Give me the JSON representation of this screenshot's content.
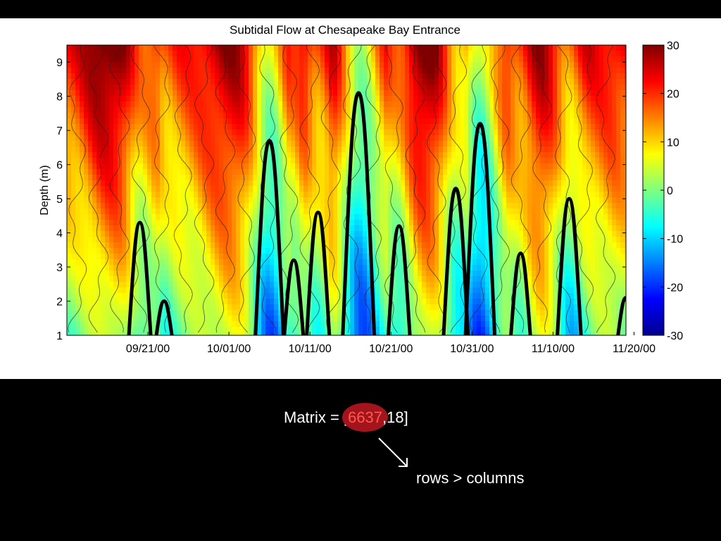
{
  "chart_data": {
    "type": "heatmap",
    "title": "Subtidal Flow at Chesapeake Bay Entrance",
    "xlabel": "",
    "ylabel": "Depth (m)",
    "x_ticks": [
      "09/21/00",
      "10/01/00",
      "10/11/00",
      "10/21/00",
      "10/31/00",
      "11/10/00",
      "11/20/00"
    ],
    "xlim": [
      "09/11/00",
      "11/19/00"
    ],
    "ylim": [
      1,
      9.5
    ],
    "y_ticks": [
      1,
      2,
      3,
      4,
      5,
      6,
      7,
      8,
      9
    ],
    "colorbar": {
      "min": -30,
      "max": 30,
      "ticks": [
        30,
        20,
        10,
        0,
        -10,
        -20,
        -30
      ],
      "colormap": "jet"
    },
    "grid": false,
    "zero_contour_peaks": [
      {
        "date": "09/20/00",
        "depth": 4.3
      },
      {
        "date": "09/23/00",
        "depth": 2.0
      },
      {
        "date": "10/06/00",
        "depth": 6.7
      },
      {
        "date": "10/09/00",
        "depth": 3.2
      },
      {
        "date": "10/12/00",
        "depth": 4.6
      },
      {
        "date": "10/17/00",
        "depth": 8.1
      },
      {
        "date": "10/22/00",
        "depth": 4.2
      },
      {
        "date": "10/29/00",
        "depth": 5.3
      },
      {
        "date": "11/01/00",
        "depth": 7.2
      },
      {
        "date": "11/06/00",
        "depth": 3.4
      },
      {
        "date": "11/12/00",
        "depth": 5.0
      },
      {
        "date": "11/19/00",
        "depth": 2.1
      }
    ]
  },
  "caption": {
    "matrix_prefix": "Matrix = [",
    "matrix_rows": "6637",
    "matrix_suffix": ",18]",
    "annotation": "rows > columns"
  }
}
